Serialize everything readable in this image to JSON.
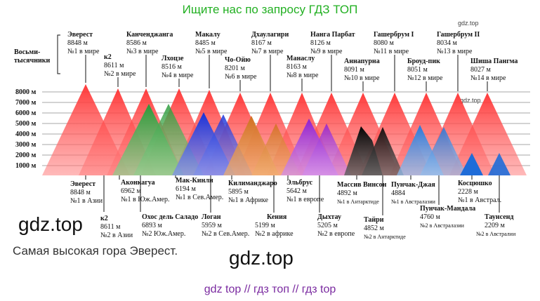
{
  "banner": "Ищите нас по запросу ГДЗ ТОП",
  "watermarks": {
    "small1": "gdz.top",
    "small2": "gdz.top",
    "big_left": "gdz.top",
    "big_center": "gdz.top"
  },
  "caption": "Самая высокая гора Эверест.",
  "bottom_links": "gdz top  //  гдз топ  //  гдз top",
  "diagram": {
    "title_line1": "Восьми-",
    "title_line2": "тысячники",
    "axis_labels": [
      "8000 м",
      "7000 м",
      "6000 м",
      "5000 м",
      "4000 м",
      "3000 м",
      "2000 м",
      "1000 м"
    ],
    "top_peaks": [
      {
        "name": "Эверест",
        "height": "8848 м",
        "rank": "№1 в мире"
      },
      {
        "name": "к2",
        "height": "8611 м",
        "rank": "№2 в мире"
      },
      {
        "name": "Канченджанга",
        "height": "8586 м",
        "rank": "№3 в мире"
      },
      {
        "name": "Лхоцзе",
        "height": "8516 м",
        "rank": "№4 в мире"
      },
      {
        "name": "Макалу",
        "height": "8485 м",
        "rank": "№5 в мире"
      },
      {
        "name": "Чо-Ойю",
        "height": "8201 м",
        "rank": "№6 в мире"
      },
      {
        "name": "Дхаулагири",
        "height": "8167 м",
        "rank": "№7 в мире"
      },
      {
        "name": "Манаслу",
        "height": "8163 м",
        "rank": "№8 в мире"
      },
      {
        "name": "Нанга Парбат",
        "height": "8126 м",
        "rank": "№9 в мире"
      },
      {
        "name": "Аннапурна",
        "height": "8091 м",
        "rank": "№10 в мире"
      },
      {
        "name": "Гашербрум I",
        "height": "8080 м",
        "rank": "№11 в мире"
      },
      {
        "name": "Броуд-пик",
        "height": "8051 м",
        "rank": "№12 в мире"
      },
      {
        "name": "Гашербрум II",
        "height": "8034 м",
        "rank": "№13 в мире"
      },
      {
        "name": "Шиша Пангма",
        "height": "8027 м",
        "rank": "№14 в мире"
      }
    ],
    "continent_peaks": [
      {
        "name": "Эверест",
        "height": "8848 м",
        "rank": "№1 в Азии"
      },
      {
        "name": "к2",
        "height": "8611 м",
        "rank": "№2 в Азии"
      },
      {
        "name": "Аконкагуа",
        "height": "6962 м",
        "rank": "№1 в Юж.Амер."
      },
      {
        "name": "Охос дель Саладо",
        "height": "6893 м",
        "rank": "№2 Юж.Амер."
      },
      {
        "name": "Мак-Кинли",
        "height": "6194 м",
        "rank": "№1 в Сев.Амер."
      },
      {
        "name": "Логан",
        "height": "5959 м",
        "rank": "№2 в Сев.Амер."
      },
      {
        "name": "Килиманджаро",
        "height": "5895 м",
        "rank": "№1 в Африке"
      },
      {
        "name": "Кения",
        "height": "5199 м",
        "rank": "№2 в африке"
      },
      {
        "name": "Эльбрус",
        "height": "5642 м",
        "rank": "№1 в европе"
      },
      {
        "name": "Дыхтау",
        "height": "5205 м",
        "rank": "№2 в европе"
      },
      {
        "name": "Массив Винсон",
        "height": "4892 м",
        "rank": "№1 в Антарктиде"
      },
      {
        "name": "Тайри",
        "height": "4852 м",
        "rank": "№2 в Антарктиде"
      },
      {
        "name": "Пунчак-Джая",
        "height": "4884",
        "rank": "№1 в Австралазии"
      },
      {
        "name": "Пунчак-Мандала",
        "height": "4760 м",
        "rank": "№2 в Австралазии"
      },
      {
        "name": "Косцюшко",
        "height": "2228 м",
        "rank": "№1 в Австрал."
      },
      {
        "name": "Таунсенд",
        "height": "2209 м",
        "rank": "№2 в Австралии"
      }
    ]
  }
}
